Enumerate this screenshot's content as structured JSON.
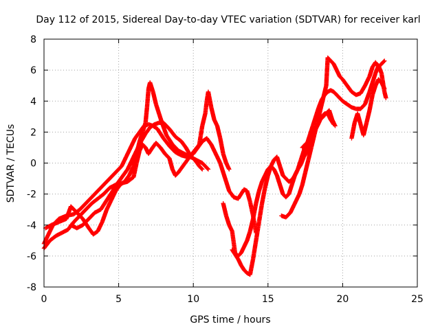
{
  "chart_data": {
    "type": "scatter",
    "title": "Day 112 of 2015, Sidereal Day-to-day VTEC variation (SDTVAR) for receiver karl",
    "xlabel": "GPS time / hours",
    "ylabel": "SDTVAR / TECUs",
    "xlim": [
      0,
      25
    ],
    "ylim": [
      -8,
      8
    ],
    "xticks": [
      0,
      5,
      10,
      15,
      20,
      25
    ],
    "yticks": [
      -8,
      -6,
      -4,
      -2,
      0,
      2,
      4,
      6,
      8
    ],
    "grid": true,
    "marker": "+",
    "color": "#ff0000",
    "series": [
      {
        "points": [
          [
            0.0,
            -5.2
          ],
          [
            0.3,
            -4.6
          ],
          [
            0.6,
            -4.0
          ],
          [
            1.0,
            -3.6
          ],
          [
            1.5,
            -3.4
          ],
          [
            2.0,
            -3.3
          ],
          [
            2.4,
            -3.0
          ],
          [
            2.8,
            -2.6
          ],
          [
            3.2,
            -2.2
          ],
          [
            3.6,
            -1.8
          ],
          [
            4.0,
            -1.4
          ],
          [
            4.4,
            -1.0
          ],
          [
            4.8,
            -0.6
          ],
          [
            5.2,
            -0.2
          ],
          [
            5.5,
            0.4
          ],
          [
            5.8,
            1.0
          ],
          [
            6.1,
            1.6
          ],
          [
            6.4,
            2.0
          ],
          [
            6.7,
            2.4
          ],
          [
            7.0,
            2.5
          ],
          [
            7.3,
            2.4
          ],
          [
            7.6,
            2.2
          ],
          [
            8.0,
            1.6
          ],
          [
            8.4,
            1.1
          ],
          [
            8.8,
            0.7
          ],
          [
            9.2,
            0.5
          ],
          [
            9.6,
            0.4
          ],
          [
            10.0,
            0.6
          ],
          [
            10.3,
            1.0
          ],
          [
            10.6,
            1.4
          ],
          [
            10.9,
            1.6
          ],
          [
            11.2,
            1.2
          ],
          [
            11.5,
            0.6
          ],
          [
            11.8,
            0.0
          ],
          [
            12.0,
            -0.6
          ],
          [
            12.2,
            -1.2
          ],
          [
            12.4,
            -1.8
          ],
          [
            12.7,
            -2.2
          ],
          [
            13.0,
            -2.3
          ],
          [
            13.2,
            -2.0
          ],
          [
            13.4,
            -1.7
          ],
          [
            13.6,
            -1.8
          ],
          [
            13.8,
            -2.5
          ],
          [
            14.0,
            -3.4
          ],
          [
            14.2,
            -4.5
          ]
        ]
      },
      {
        "points": [
          [
            0.1,
            -4.2
          ],
          [
            0.5,
            -4.0
          ],
          [
            1.0,
            -3.8
          ],
          [
            1.5,
            -3.6
          ],
          [
            1.8,
            -2.8
          ],
          [
            2.2,
            -3.2
          ],
          [
            2.6,
            -3.6
          ],
          [
            3.0,
            -4.2
          ],
          [
            3.3,
            -4.6
          ],
          [
            3.6,
            -4.4
          ],
          [
            3.9,
            -3.8
          ],
          [
            4.2,
            -3.0
          ],
          [
            4.5,
            -2.4
          ],
          [
            4.8,
            -1.8
          ],
          [
            5.1,
            -1.4
          ],
          [
            5.4,
            -1.2
          ],
          [
            5.7,
            -0.8
          ],
          [
            6.0,
            -0.2
          ],
          [
            6.2,
            0.6
          ],
          [
            6.4,
            1.4
          ],
          [
            6.6,
            2.0
          ],
          [
            6.8,
            2.6
          ],
          [
            6.9,
            3.6
          ],
          [
            7.0,
            4.8
          ],
          [
            7.1,
            5.2
          ],
          [
            7.3,
            4.6
          ],
          [
            7.5,
            3.8
          ],
          [
            7.7,
            3.2
          ],
          [
            7.9,
            2.6
          ],
          [
            8.2,
            1.8
          ],
          [
            8.6,
            1.2
          ],
          [
            9.0,
            0.8
          ],
          [
            9.4,
            0.6
          ],
          [
            9.8,
            0.4
          ],
          [
            10.2,
            0.2
          ],
          [
            10.6,
            0.0
          ],
          [
            10.8,
            -0.2
          ],
          [
            11.0,
            -0.4
          ]
        ]
      },
      {
        "points": [
          [
            0.0,
            -5.5
          ],
          [
            0.4,
            -5.0
          ],
          [
            0.8,
            -4.7
          ],
          [
            1.2,
            -4.5
          ],
          [
            1.6,
            -4.3
          ],
          [
            2.0,
            -3.8
          ],
          [
            2.4,
            -3.4
          ],
          [
            2.8,
            -3.0
          ],
          [
            3.2,
            -2.6
          ],
          [
            3.6,
            -2.3
          ],
          [
            4.0,
            -2.0
          ],
          [
            4.4,
            -1.6
          ],
          [
            4.8,
            -1.4
          ],
          [
            5.2,
            -1.3
          ],
          [
            5.6,
            -1.2
          ],
          [
            6.0,
            -0.9
          ],
          [
            6.2,
            0.0
          ],
          [
            6.4,
            0.8
          ],
          [
            6.6,
            1.2
          ],
          [
            6.8,
            1.0
          ],
          [
            7.0,
            0.6
          ],
          [
            7.2,
            0.9
          ],
          [
            7.5,
            1.3
          ],
          [
            7.8,
            1.0
          ],
          [
            8.1,
            0.6
          ],
          [
            8.4,
            0.3
          ],
          [
            8.6,
            -0.4
          ],
          [
            8.8,
            -0.8
          ],
          [
            9.0,
            -0.6
          ],
          [
            9.3,
            -0.2
          ],
          [
            9.6,
            0.2
          ],
          [
            10.0,
            0.7
          ],
          [
            10.4,
            1.2
          ],
          [
            10.6,
            2.4
          ],
          [
            10.8,
            3.2
          ],
          [
            10.9,
            4.0
          ],
          [
            11.0,
            4.6
          ],
          [
            11.2,
            3.6
          ],
          [
            11.4,
            2.8
          ],
          [
            11.6,
            2.4
          ],
          [
            11.8,
            1.6
          ],
          [
            12.0,
            0.6
          ],
          [
            12.2,
            0.0
          ],
          [
            12.4,
            -0.4
          ]
        ]
      },
      {
        "points": [
          [
            1.8,
            -4.0
          ],
          [
            2.2,
            -4.2
          ],
          [
            2.6,
            -4.0
          ],
          [
            3.0,
            -3.6
          ],
          [
            3.4,
            -3.2
          ],
          [
            3.8,
            -3.0
          ],
          [
            4.2,
            -2.4
          ],
          [
            4.6,
            -1.8
          ],
          [
            5.0,
            -1.2
          ],
          [
            5.3,
            -0.8
          ],
          [
            5.6,
            -0.4
          ],
          [
            5.9,
            0.2
          ],
          [
            6.2,
            0.8
          ],
          [
            6.5,
            1.4
          ],
          [
            6.8,
            1.9
          ],
          [
            7.1,
            2.3
          ],
          [
            7.4,
            2.5
          ],
          [
            7.7,
            2.6
          ],
          [
            8.0,
            2.6
          ],
          [
            8.4,
            2.2
          ],
          [
            8.8,
            1.7
          ],
          [
            9.2,
            1.4
          ],
          [
            9.5,
            1.0
          ],
          [
            9.8,
            0.5
          ],
          [
            10.1,
            0.2
          ],
          [
            10.4,
            -0.2
          ],
          [
            10.6,
            -0.4
          ]
        ]
      },
      {
        "points": [
          [
            12.0,
            -2.6
          ],
          [
            12.2,
            -3.4
          ],
          [
            12.4,
            -4.0
          ],
          [
            12.6,
            -4.4
          ],
          [
            12.8,
            -5.8
          ],
          [
            13.0,
            -6.0
          ],
          [
            13.2,
            -5.8
          ],
          [
            13.4,
            -5.4
          ],
          [
            13.6,
            -5.0
          ],
          [
            13.8,
            -4.4
          ],
          [
            14.0,
            -3.6
          ],
          [
            14.2,
            -2.6
          ],
          [
            14.4,
            -1.8
          ],
          [
            14.6,
            -1.2
          ],
          [
            14.8,
            -0.8
          ],
          [
            15.0,
            -0.4
          ],
          [
            15.2,
            -0.2
          ],
          [
            15.4,
            -0.4
          ],
          [
            15.6,
            -0.8
          ],
          [
            15.8,
            -1.4
          ],
          [
            16.0,
            -2.0
          ],
          [
            16.2,
            -2.2
          ],
          [
            16.4,
            -2.0
          ],
          [
            16.6,
            -1.4
          ],
          [
            16.8,
            -0.8
          ],
          [
            17.0,
            -0.4
          ],
          [
            17.2,
            0.2
          ],
          [
            17.4,
            0.8
          ],
          [
            17.6,
            1.2
          ],
          [
            17.8,
            1.8
          ],
          [
            18.0,
            2.4
          ],
          [
            18.2,
            3.0
          ],
          [
            18.4,
            3.6
          ],
          [
            18.6,
            4.1
          ],
          [
            18.8,
            4.4
          ],
          [
            19.0,
            4.6
          ],
          [
            19.2,
            4.7
          ],
          [
            19.4,
            4.6
          ],
          [
            19.6,
            4.4
          ],
          [
            19.8,
            4.2
          ],
          [
            20.0,
            4.0
          ],
          [
            20.3,
            3.8
          ],
          [
            20.6,
            3.6
          ],
          [
            20.9,
            3.5
          ],
          [
            21.2,
            3.5
          ],
          [
            21.5,
            3.8
          ],
          [
            21.8,
            4.6
          ],
          [
            22.0,
            5.2
          ],
          [
            22.2,
            5.8
          ],
          [
            22.4,
            6.3
          ],
          [
            22.6,
            5.8
          ],
          [
            22.8,
            4.6
          ],
          [
            22.9,
            4.2
          ]
        ]
      },
      {
        "points": [
          [
            12.6,
            -5.6
          ],
          [
            12.8,
            -5.9
          ],
          [
            13.0,
            -6.2
          ],
          [
            13.2,
            -6.6
          ],
          [
            13.4,
            -6.9
          ],
          [
            13.6,
            -7.1
          ],
          [
            13.8,
            -7.2
          ],
          [
            14.0,
            -6.2
          ],
          [
            14.2,
            -5.0
          ],
          [
            14.4,
            -3.8
          ],
          [
            14.6,
            -2.6
          ],
          [
            14.8,
            -1.6
          ],
          [
            15.0,
            -0.8
          ],
          [
            15.2,
            -0.2
          ],
          [
            15.4,
            0.2
          ],
          [
            15.6,
            0.4
          ],
          [
            15.8,
            -0.2
          ],
          [
            16.0,
            -0.8
          ],
          [
            16.2,
            -1.0
          ],
          [
            16.4,
            -1.2
          ],
          [
            16.6,
            -1.1
          ],
          [
            16.8,
            -0.8
          ],
          [
            17.0,
            -0.4
          ],
          [
            17.2,
            -0.1
          ],
          [
            17.4,
            0.4
          ],
          [
            17.6,
            0.7
          ],
          [
            17.8,
            1.2
          ],
          [
            18.0,
            1.8
          ],
          [
            18.2,
            2.2
          ],
          [
            18.4,
            2.6
          ],
          [
            18.6,
            3.0
          ],
          [
            18.8,
            3.2
          ],
          [
            19.0,
            3.2
          ],
          [
            19.2,
            2.8
          ],
          [
            19.4,
            2.5
          ]
        ]
      },
      {
        "points": [
          [
            15.9,
            -3.4
          ],
          [
            16.2,
            -3.5
          ],
          [
            16.5,
            -3.2
          ],
          [
            16.8,
            -2.6
          ],
          [
            17.1,
            -2.0
          ],
          [
            17.3,
            -1.4
          ],
          [
            17.5,
            -0.6
          ],
          [
            17.7,
            0.2
          ],
          [
            17.9,
            1.0
          ],
          [
            18.1,
            1.8
          ],
          [
            18.3,
            2.6
          ],
          [
            18.5,
            3.4
          ],
          [
            18.7,
            4.2
          ],
          [
            18.9,
            5.0
          ],
          [
            19.0,
            6.8
          ],
          [
            19.2,
            6.6
          ],
          [
            19.4,
            6.4
          ],
          [
            19.6,
            6.0
          ],
          [
            19.8,
            5.6
          ],
          [
            20.0,
            5.4
          ],
          [
            20.3,
            5.0
          ],
          [
            20.6,
            4.6
          ],
          [
            20.9,
            4.4
          ],
          [
            21.2,
            4.5
          ],
          [
            21.5,
            5.0
          ],
          [
            21.8,
            5.6
          ],
          [
            22.0,
            6.2
          ],
          [
            22.2,
            6.5
          ],
          [
            22.4,
            6.2
          ],
          [
            22.6,
            6.4
          ],
          [
            22.8,
            6.6
          ]
        ]
      },
      {
        "points": [
          [
            20.6,
            1.6
          ],
          [
            20.8,
            2.6
          ],
          [
            21.0,
            3.2
          ],
          [
            21.4,
            1.8
          ],
          [
            21.6,
            2.6
          ],
          [
            21.8,
            3.4
          ],
          [
            22.0,
            4.4
          ],
          [
            22.2,
            5.0
          ],
          [
            22.4,
            5.4
          ],
          [
            22.6,
            5.2
          ],
          [
            22.8,
            4.8
          ]
        ]
      },
      {
        "points": [
          [
            17.3,
            1.0
          ],
          [
            17.5,
            1.2
          ],
          [
            17.7,
            1.4
          ],
          [
            17.9,
            1.6
          ],
          [
            18.1,
            2.0
          ],
          [
            18.3,
            2.4
          ],
          [
            18.5,
            2.8
          ],
          [
            18.7,
            3.0
          ],
          [
            18.9,
            3.2
          ],
          [
            19.1,
            3.4
          ],
          [
            19.3,
            2.8
          ],
          [
            19.5,
            2.4
          ]
        ]
      }
    ]
  }
}
